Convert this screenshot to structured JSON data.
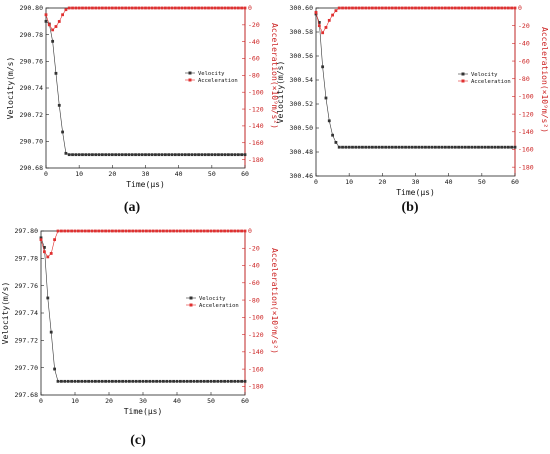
{
  "chart_data": [
    {
      "panel": "(a)",
      "type": "scatter",
      "xlabel": "Time(μs)",
      "ylabel_left": "Velocity(m/s)",
      "ylabel_right": "Acceleration(×10⁹m/s²)",
      "xlim": [
        0,
        60
      ],
      "ylim_left": [
        290.68,
        290.8
      ],
      "ylim_right": [
        -190,
        0
      ],
      "x_ticks": [
        "0",
        "10",
        "20",
        "30",
        "40",
        "50",
        "60"
      ],
      "y_ticks_left": [
        "290.68",
        "290.70",
        "290.72",
        "290.74",
        "290.76",
        "290.78",
        "290.80"
      ],
      "y_ticks_right": [
        "0",
        "-20",
        "-40",
        "-60",
        "-80",
        "-100",
        "-120",
        "-140",
        "-160",
        "-180"
      ],
      "legend": [
        "Velocity",
        "Acceleration"
      ],
      "series": [
        {
          "name": "Velocity",
          "color": "#333333",
          "x": [
            0,
            1,
            2,
            3,
            4,
            5,
            6,
            7,
            8,
            9,
            10,
            11,
            12,
            13,
            14,
            15,
            16,
            17,
            18,
            19,
            20,
            21,
            22,
            23,
            24,
            25,
            26,
            27,
            28,
            29,
            30,
            31,
            32,
            33,
            34,
            35,
            36,
            37,
            38,
            39,
            40,
            41,
            42,
            43,
            44,
            45,
            46,
            47,
            48,
            49,
            50,
            51,
            52,
            53,
            54,
            55,
            56,
            57,
            58,
            59,
            60
          ],
          "y": [
            290.79,
            290.788,
            290.775,
            290.751,
            290.727,
            290.707,
            290.691,
            290.69,
            290.69,
            290.69,
            290.69,
            290.69,
            290.69,
            290.69,
            290.69,
            290.69,
            290.69,
            290.69,
            290.69,
            290.69,
            290.69,
            290.69,
            290.69,
            290.69,
            290.69,
            290.69,
            290.69,
            290.69,
            290.69,
            290.69,
            290.69,
            290.69,
            290.69,
            290.69,
            290.69,
            290.69,
            290.69,
            290.69,
            290.69,
            290.69,
            290.69,
            290.69,
            290.69,
            290.69,
            290.69,
            290.69,
            290.69,
            290.69,
            290.69,
            290.69,
            290.69,
            290.69,
            290.69,
            290.69,
            290.69,
            290.69,
            290.69,
            290.69,
            290.69,
            290.69,
            290.69
          ]
        },
        {
          "name": "Acceleration",
          "color": "#e03030",
          "x": [
            0,
            1,
            2,
            3,
            4,
            5,
            6,
            7,
            8,
            9,
            10,
            11,
            12,
            13,
            14,
            15,
            16,
            17,
            18,
            19,
            20,
            21,
            22,
            23,
            24,
            25,
            26,
            27,
            28,
            29,
            30,
            31,
            32,
            33,
            34,
            35,
            36,
            37,
            38,
            39,
            40,
            41,
            42,
            43,
            44,
            45,
            46,
            47,
            48,
            49,
            50,
            51,
            52,
            53,
            54,
            55,
            56,
            57,
            58,
            59,
            60
          ],
          "y": [
            -8,
            -20,
            -26,
            -22,
            -16,
            -8,
            -2,
            0,
            0,
            0,
            0,
            0,
            0,
            0,
            0,
            0,
            0,
            0,
            0,
            0,
            0,
            0,
            0,
            0,
            0,
            0,
            0,
            0,
            0,
            0,
            0,
            0,
            0,
            0,
            0,
            0,
            0,
            0,
            0,
            0,
            0,
            0,
            0,
            0,
            0,
            0,
            0,
            0,
            0,
            0,
            0,
            0,
            0,
            0,
            0,
            0,
            0,
            0,
            0,
            0,
            0
          ]
        }
      ]
    },
    {
      "panel": "(b)",
      "type": "scatter",
      "xlabel": "Time(μs)",
      "ylabel_left": "Velocity(m/s)",
      "ylabel_right": "Acceleration(×10⁹m/s²)",
      "xlim": [
        0,
        60
      ],
      "ylim_left": [
        300.46,
        300.6
      ],
      "ylim_right": [
        -190,
        0
      ],
      "x_ticks": [
        "0",
        "10",
        "20",
        "30",
        "40",
        "50",
        "60"
      ],
      "y_ticks_left": [
        "300.46",
        "300.48",
        "300.50",
        "300.52",
        "300.54",
        "300.56",
        "300.58",
        "300.60"
      ],
      "y_ticks_right": [
        "0",
        "-20",
        "-40",
        "-60",
        "-80",
        "-100",
        "-120",
        "-140",
        "-160",
        "-180"
      ],
      "legend": [
        "Velocity",
        "Acceleration"
      ],
      "series": [
        {
          "name": "Velocity",
          "color": "#333333",
          "x": [
            0,
            1,
            2,
            3,
            4,
            5,
            6,
            7,
            8,
            9,
            10,
            11,
            12,
            13,
            14,
            15,
            16,
            17,
            18,
            19,
            20,
            21,
            22,
            23,
            24,
            25,
            26,
            27,
            28,
            29,
            30,
            31,
            32,
            33,
            34,
            35,
            36,
            37,
            38,
            39,
            40,
            41,
            42,
            43,
            44,
            45,
            46,
            47,
            48,
            49,
            50,
            51,
            52,
            53,
            54,
            55,
            56,
            57,
            58,
            59,
            60
          ],
          "y": [
            300.595,
            300.588,
            300.551,
            300.525,
            300.506,
            300.494,
            300.488,
            300.484,
            300.484,
            300.484,
            300.484,
            300.484,
            300.484,
            300.484,
            300.484,
            300.484,
            300.484,
            300.484,
            300.484,
            300.484,
            300.484,
            300.484,
            300.484,
            300.484,
            300.484,
            300.484,
            300.484,
            300.484,
            300.484,
            300.484,
            300.484,
            300.484,
            300.484,
            300.484,
            300.484,
            300.484,
            300.484,
            300.484,
            300.484,
            300.484,
            300.484,
            300.484,
            300.484,
            300.484,
            300.484,
            300.484,
            300.484,
            300.484,
            300.484,
            300.484,
            300.484,
            300.484,
            300.484,
            300.484,
            300.484,
            300.484,
            300.484,
            300.484,
            300.484,
            300.484,
            300.484
          ]
        },
        {
          "name": "Acceleration",
          "color": "#e03030",
          "x": [
            0,
            1,
            2,
            3,
            4,
            5,
            6,
            7,
            8,
            9,
            10,
            11,
            12,
            13,
            14,
            15,
            16,
            17,
            18,
            19,
            20,
            21,
            22,
            23,
            24,
            25,
            26,
            27,
            28,
            29,
            30,
            31,
            32,
            33,
            34,
            35,
            36,
            37,
            38,
            39,
            40,
            41,
            42,
            43,
            44,
            45,
            46,
            47,
            48,
            49,
            50,
            51,
            52,
            53,
            54,
            55,
            56,
            57,
            58,
            59,
            60
          ],
          "y": [
            -5,
            -20,
            -28,
            -22,
            -14,
            -8,
            -3,
            0,
            0,
            0,
            0,
            0,
            0,
            0,
            0,
            0,
            0,
            0,
            0,
            0,
            0,
            0,
            0,
            0,
            0,
            0,
            0,
            0,
            0,
            0,
            0,
            0,
            0,
            0,
            0,
            0,
            0,
            0,
            0,
            0,
            0,
            0,
            0,
            0,
            0,
            0,
            0,
            0,
            0,
            0,
            0,
            0,
            0,
            0,
            0,
            0,
            0,
            0,
            0,
            0,
            0
          ]
        }
      ]
    },
    {
      "panel": "(c)",
      "type": "scatter",
      "xlabel": "Time(μs)",
      "ylabel_left": "Velocity(m/s)",
      "ylabel_right": "Acceleration(×10⁹m/s²)",
      "xlim": [
        0,
        60
      ],
      "ylim_left": [
        297.68,
        297.8
      ],
      "ylim_right": [
        -190,
        0
      ],
      "x_ticks": [
        "0",
        "10",
        "20",
        "30",
        "40",
        "50",
        "60"
      ],
      "y_ticks_left": [
        "297.68",
        "297.70",
        "297.72",
        "297.74",
        "297.76",
        "297.78",
        "297.80"
      ],
      "y_ticks_right": [
        "0",
        "-20",
        "-40",
        "-60",
        "-80",
        "-100",
        "-120",
        "-140",
        "-160",
        "-180"
      ],
      "legend": [
        "Velocity",
        "Acceleration"
      ],
      "series": [
        {
          "name": "Velocity",
          "color": "#333333",
          "x": [
            0,
            1,
            2,
            3,
            4,
            5,
            6,
            7,
            8,
            9,
            10,
            11,
            12,
            13,
            14,
            15,
            16,
            17,
            18,
            19,
            20,
            21,
            22,
            23,
            24,
            25,
            26,
            27,
            28,
            29,
            30,
            31,
            32,
            33,
            34,
            35,
            36,
            37,
            38,
            39,
            40,
            41,
            42,
            43,
            44,
            45,
            46,
            47,
            48,
            49,
            50,
            51,
            52,
            53,
            54,
            55,
            56,
            57,
            58,
            59,
            60
          ],
          "y": [
            297.795,
            297.788,
            297.751,
            297.726,
            297.699,
            297.69,
            297.69,
            297.69,
            297.69,
            297.69,
            297.69,
            297.69,
            297.69,
            297.69,
            297.69,
            297.69,
            297.69,
            297.69,
            297.69,
            297.69,
            297.69,
            297.69,
            297.69,
            297.69,
            297.69,
            297.69,
            297.69,
            297.69,
            297.69,
            297.69,
            297.69,
            297.69,
            297.69,
            297.69,
            297.69,
            297.69,
            297.69,
            297.69,
            297.69,
            297.69,
            297.69,
            297.69,
            297.69,
            297.69,
            297.69,
            297.69,
            297.69,
            297.69,
            297.69,
            297.69,
            297.69,
            297.69,
            297.69,
            297.69,
            297.69,
            297.69,
            297.69,
            297.69,
            297.69,
            297.69,
            297.69
          ]
        },
        {
          "name": "Acceleration",
          "color": "#e03030",
          "x": [
            0,
            1,
            2,
            3,
            4,
            5,
            6,
            7,
            8,
            9,
            10,
            11,
            12,
            13,
            14,
            15,
            16,
            17,
            18,
            19,
            20,
            21,
            22,
            23,
            24,
            25,
            26,
            27,
            28,
            29,
            30,
            31,
            32,
            33,
            34,
            35,
            36,
            37,
            38,
            39,
            40,
            41,
            42,
            43,
            44,
            45,
            46,
            47,
            48,
            49,
            50,
            51,
            52,
            53,
            54,
            55,
            56,
            57,
            58,
            59,
            60
          ],
          "y": [
            -10,
            -24,
            -30,
            -26,
            -10,
            0,
            0,
            0,
            0,
            0,
            0,
            0,
            0,
            0,
            0,
            0,
            0,
            0,
            0,
            0,
            0,
            0,
            0,
            0,
            0,
            0,
            0,
            0,
            0,
            0,
            0,
            0,
            0,
            0,
            0,
            0,
            0,
            0,
            0,
            0,
            0,
            0,
            0,
            0,
            0,
            0,
            0,
            0,
            0,
            0,
            0,
            0,
            0,
            0,
            0,
            0,
            0,
            0,
            0,
            0,
            0
          ]
        }
      ]
    }
  ]
}
